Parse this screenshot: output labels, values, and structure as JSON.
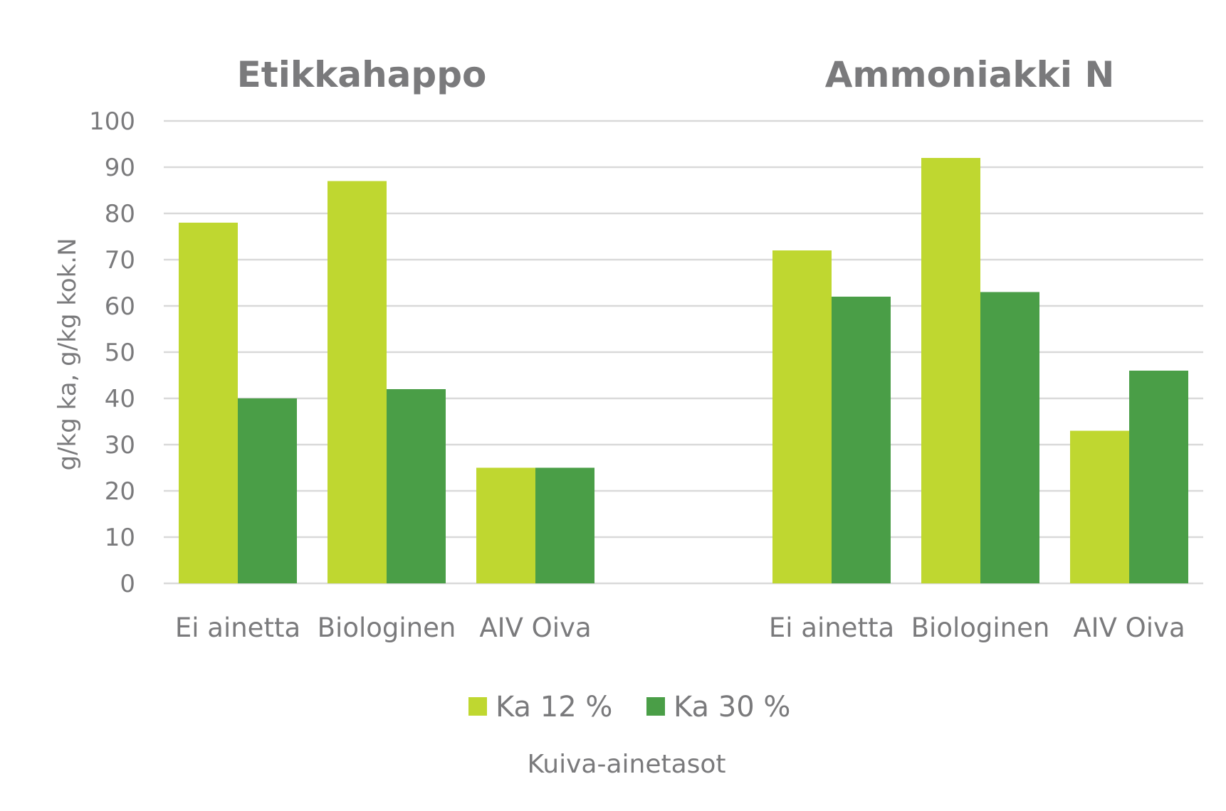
{
  "chart_data": {
    "type": "bar",
    "ylabel": "g/kg ka,  g/kg kok.N",
    "xlabel": "Kuiva-ainetasot",
    "ylim": [
      0,
      100
    ],
    "yticks": [
      0,
      10,
      20,
      30,
      40,
      50,
      60,
      70,
      80,
      90,
      100
    ],
    "grid": true,
    "legend_position": "bottom",
    "series_colors": [
      "#bfd730",
      "#4a9e47"
    ],
    "legend": [
      "Ka 12 %",
      "Ka 30 %"
    ],
    "groups": [
      {
        "title": "Etikkahappo",
        "categories": [
          "Ei ainetta",
          "Biologinen",
          "AIV Oiva"
        ],
        "series": [
          {
            "name": "Ka 12 %",
            "values": [
              78,
              87,
              25
            ]
          },
          {
            "name": "Ka 30 %",
            "values": [
              40,
              42,
              25
            ]
          }
        ]
      },
      {
        "title": "Ammoniakki N",
        "categories": [
          "Ei ainetta",
          "Biologinen",
          "AIV Oiva"
        ],
        "series": [
          {
            "name": "Ka 12 %",
            "values": [
              72,
              92,
              33
            ]
          },
          {
            "name": "Ka 30 %",
            "values": [
              62,
              63,
              46
            ]
          }
        ]
      }
    ]
  }
}
